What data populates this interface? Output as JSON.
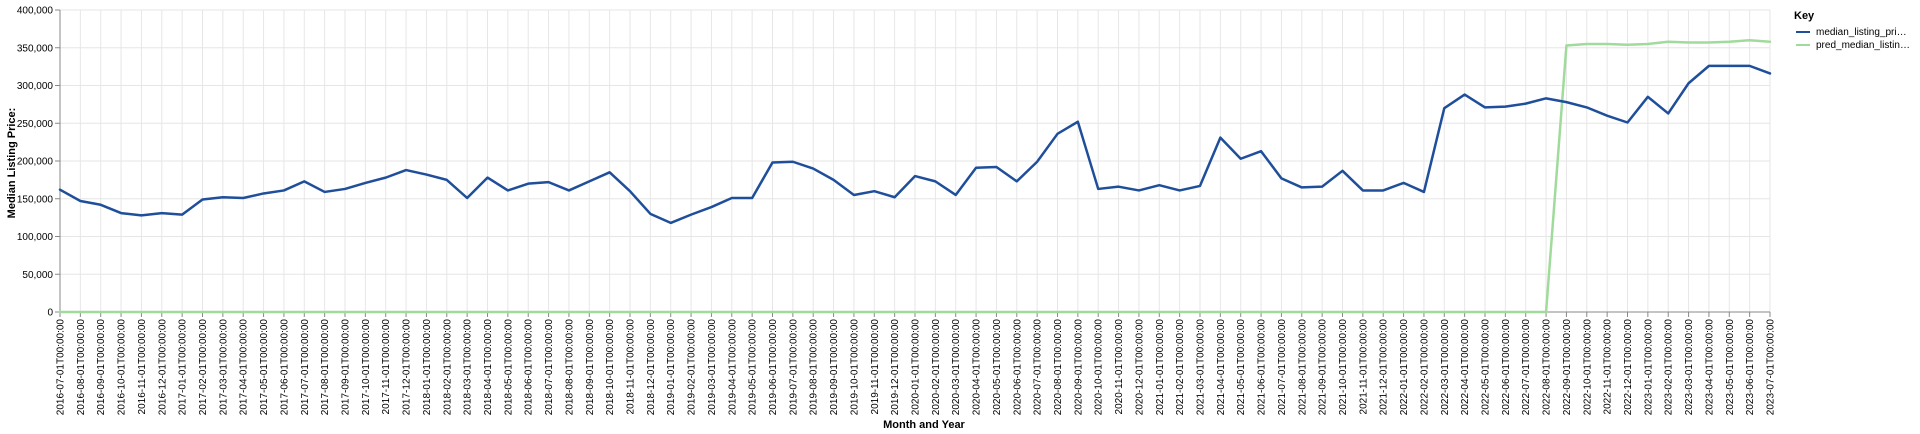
{
  "chart_data": {
    "type": "line",
    "xlabel": "Month and Year",
    "ylabel": "Median Listing Price:",
    "ylim": [
      0,
      400000
    ],
    "yticks": [
      "0",
      "50,000",
      "100,000",
      "150,000",
      "200,000",
      "250,000",
      "300,000",
      "350,000",
      "400,000"
    ],
    "grid": true,
    "legend": {
      "title": "Key",
      "placement": "top-right",
      "labels": [
        "median_listing_pri…",
        "pred_median_listin…"
      ]
    },
    "x": [
      "2016-07-01T00:00:00",
      "2016-08-01T00:00:00",
      "2016-09-01T00:00:00",
      "2016-10-01T00:00:00",
      "2016-11-01T00:00:00",
      "2016-12-01T00:00:00",
      "2017-01-01T00:00:00",
      "2017-02-01T00:00:00",
      "2017-03-01T00:00:00",
      "2017-04-01T00:00:00",
      "2017-05-01T00:00:00",
      "2017-06-01T00:00:00",
      "2017-07-01T00:00:00",
      "2017-08-01T00:00:00",
      "2017-09-01T00:00:00",
      "2017-10-01T00:00:00",
      "2017-11-01T00:00:00",
      "2017-12-01T00:00:00",
      "2018-01-01T00:00:00",
      "2018-02-01T00:00:00",
      "2018-03-01T00:00:00",
      "2018-04-01T00:00:00",
      "2018-05-01T00:00:00",
      "2018-06-01T00:00:00",
      "2018-07-01T00:00:00",
      "2018-08-01T00:00:00",
      "2018-09-01T00:00:00",
      "2018-10-01T00:00:00",
      "2018-11-01T00:00:00",
      "2018-12-01T00:00:00",
      "2019-01-01T00:00:00",
      "2019-02-01T00:00:00",
      "2019-03-01T00:00:00",
      "2019-04-01T00:00:00",
      "2019-05-01T00:00:00",
      "2019-06-01T00:00:00",
      "2019-07-01T00:00:00",
      "2019-08-01T00:00:00",
      "2019-09-01T00:00:00",
      "2019-10-01T00:00:00",
      "2019-11-01T00:00:00",
      "2019-12-01T00:00:00",
      "2020-01-01T00:00:00",
      "2020-02-01T00:00:00",
      "2020-03-01T00:00:00",
      "2020-04-01T00:00:00",
      "2020-05-01T00:00:00",
      "2020-06-01T00:00:00",
      "2020-07-01T00:00:00",
      "2020-08-01T00:00:00",
      "2020-09-01T00:00:00",
      "2020-10-01T00:00:00",
      "2020-11-01T00:00:00",
      "2020-12-01T00:00:00",
      "2021-01-01T00:00:00",
      "2021-02-01T00:00:00",
      "2021-03-01T00:00:00",
      "2021-04-01T00:00:00",
      "2021-05-01T00:00:00",
      "2021-06-01T00:00:00",
      "2021-07-01T00:00:00",
      "2021-08-01T00:00:00",
      "2021-09-01T00:00:00",
      "2021-10-01T00:00:00",
      "2021-11-01T00:00:00",
      "2021-12-01T00:00:00",
      "2022-01-01T00:00:00",
      "2022-02-01T00:00:00",
      "2022-03-01T00:00:00",
      "2022-04-01T00:00:00",
      "2022-05-01T00:00:00",
      "2022-06-01T00:00:00",
      "2022-07-01T00:00:00",
      "2022-08-01T00:00:00",
      "2022-09-01T00:00:00",
      "2022-10-01T00:00:00",
      "2022-11-01T00:00:00",
      "2022-12-01T00:00:00",
      "2023-01-01T00:00:00",
      "2023-02-01T00:00:00",
      "2023-03-01T00:00:00",
      "2023-04-01T00:00:00",
      "2023-05-01T00:00:00",
      "2023-06-01T00:00:00",
      "2023-07-01T00:00:00"
    ],
    "series": [
      {
        "name": "median_listing_pri…",
        "color": "#1f4e9a",
        "values": [
          162000,
          147000,
          142000,
          131000,
          128000,
          131000,
          129000,
          149000,
          152000,
          151000,
          157000,
          161000,
          173000,
          159000,
          163000,
          171000,
          178000,
          188000,
          182000,
          175000,
          151000,
          178000,
          161000,
          170000,
          172000,
          161000,
          173000,
          185000,
          160000,
          130000,
          118000,
          129000,
          139000,
          151000,
          151000,
          198000,
          199000,
          190000,
          175000,
          155000,
          160000,
          152000,
          180000,
          173000,
          155000,
          191000,
          192000,
          173000,
          199000,
          236000,
          252000,
          163000,
          166000,
          161000,
          168000,
          161000,
          167000,
          231000,
          203000,
          213000,
          177000,
          165000,
          166000,
          187000,
          161000,
          161000,
          171000,
          159000,
          270000,
          288000,
          271000,
          272000,
          276000,
          283000,
          278000,
          271000,
          260000,
          251000,
          285000,
          263000,
          303000,
          326000,
          326000,
          326000,
          316000
        ]
      },
      {
        "name": "pred_median_listin…",
        "color": "#a0db9c",
        "values": [
          0,
          0,
          0,
          0,
          0,
          0,
          0,
          0,
          0,
          0,
          0,
          0,
          0,
          0,
          0,
          0,
          0,
          0,
          0,
          0,
          0,
          0,
          0,
          0,
          0,
          0,
          0,
          0,
          0,
          0,
          0,
          0,
          0,
          0,
          0,
          0,
          0,
          0,
          0,
          0,
          0,
          0,
          0,
          0,
          0,
          0,
          0,
          0,
          0,
          0,
          0,
          0,
          0,
          0,
          0,
          0,
          0,
          0,
          0,
          0,
          0,
          0,
          0,
          0,
          0,
          0,
          0,
          0,
          0,
          0,
          0,
          0,
          0,
          0,
          353000,
          355000,
          355000,
          354000,
          355000,
          358000,
          357000,
          357000,
          358000,
          360000,
          358000
        ]
      }
    ]
  }
}
